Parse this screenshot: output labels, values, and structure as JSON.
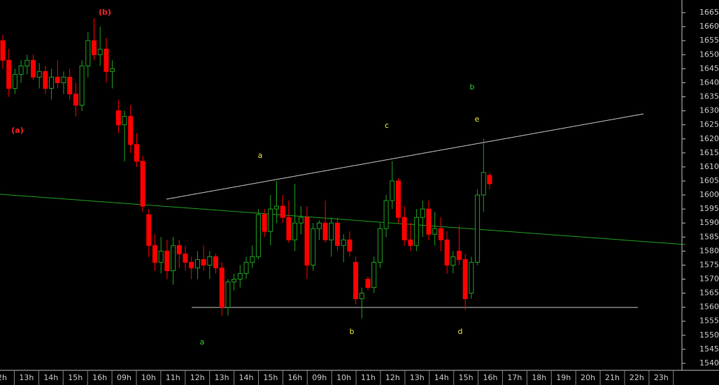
{
  "chart_data": {
    "type": "candlestick",
    "open": [
      1655,
      1648,
      1638,
      1643,
      1646,
      1648,
      1642,
      1644,
      1638,
      1642,
      1640,
      1642,
      1636,
      1632,
      1646,
      1655,
      1650,
      1652,
      1644,
      1630,
      1625,
      1628,
      1618,
      1612,
      1593,
      1582,
      1576,
      1580,
      1573,
      1582,
      1579,
      1576,
      1574,
      1577,
      1575,
      1578,
      1574,
      1560,
      1569,
      1570,
      1572,
      1576,
      1578,
      1593,
      1587,
      1595,
      1596,
      1592,
      1584,
      1590,
      1592,
      1575,
      1588,
      1590,
      1584,
      1590,
      1582,
      1584,
      1576,
      1563,
      1570,
      1567,
      1576,
      1588,
      1598,
      1605,
      1592,
      1584,
      1582,
      1592,
      1595,
      1586,
      1588,
      1584,
      1575,
      1580,
      1577,
      1565,
      1576,
      1600,
      1607
    ],
    "high": [
      1657,
      1652,
      1645,
      1648,
      1650,
      1650,
      1647,
      1646,
      1645,
      1648,
      1644,
      1645,
      1640,
      1648,
      1658,
      1663,
      1660,
      1656,
      1648,
      1634,
      1630,
      1632,
      1622,
      1614,
      1595,
      1586,
      1585,
      1584,
      1585,
      1584,
      1582,
      1578,
      1580,
      1582,
      1580,
      1579,
      1576,
      1570,
      1572,
      1575,
      1578,
      1582,
      1595,
      1595,
      1600,
      1605,
      1600,
      1598,
      1604,
      1596,
      1596,
      1590,
      1591,
      1598,
      1592,
      1592,
      1586,
      1587,
      1578,
      1567,
      1571,
      1578,
      1590,
      1600,
      1612,
      1606,
      1596,
      1590,
      1595,
      1598,
      1598,
      1594,
      1592,
      1587,
      1580,
      1589,
      1579,
      1578,
      1602,
      1620,
      1608
    ],
    "low": [
      1645,
      1635,
      1636,
      1640,
      1643,
      1641,
      1638,
      1636,
      1634,
      1638,
      1636,
      1634,
      1628,
      1630,
      1642,
      1648,
      1646,
      1640,
      1638,
      1622,
      1612,
      1615,
      1610,
      1594,
      1578,
      1573,
      1572,
      1570,
      1568,
      1574,
      1573,
      1570,
      1570,
      1573,
      1570,
      1572,
      1557,
      1557,
      1566,
      1567,
      1570,
      1574,
      1577,
      1585,
      1582,
      1590,
      1590,
      1583,
      1580,
      1586,
      1570,
      1573,
      1584,
      1583,
      1578,
      1580,
      1576,
      1578,
      1561,
      1556,
      1566,
      1565,
      1574,
      1585,
      1595,
      1590,
      1582,
      1580,
      1580,
      1585,
      1584,
      1582,
      1580,
      1572,
      1572,
      1575,
      1559,
      1563,
      1575,
      1594,
      1602
    ],
    "close": [
      1648,
      1638,
      1643,
      1646,
      1648,
      1642,
      1644,
      1638,
      1642,
      1640,
      1642,
      1636,
      1632,
      1646,
      1655,
      1650,
      1652,
      1644,
      1645,
      1625,
      1628,
      1618,
      1612,
      1596,
      1582,
      1576,
      1580,
      1573,
      1582,
      1579,
      1576,
      1574,
      1577,
      1575,
      1578,
      1574,
      1560,
      1569,
      1570,
      1572,
      1576,
      1578,
      1593,
      1587,
      1595,
      1596,
      1592,
      1584,
      1590,
      1592,
      1575,
      1588,
      1590,
      1584,
      1590,
      1582,
      1584,
      1580,
      1563,
      1565,
      1567,
      1576,
      1588,
      1598,
      1605,
      1592,
      1584,
      1582,
      1592,
      1595,
      1586,
      1588,
      1584,
      1575,
      1578,
      1577,
      1563,
      1576,
      1600,
      1608,
      1604
    ],
    "up_color": "#1f9f1f",
    "down_color": "#ff0000",
    "x_labels": [
      "2h",
      "13h",
      "14h",
      "15h",
      "16h",
      "09h",
      "10h",
      "11h",
      "12h",
      "13h",
      "14h",
      "15h",
      "16h",
      "09h",
      "10h",
      "11h",
      "12h",
      "13h",
      "14h",
      "15h",
      "16h",
      "17h",
      "18h",
      "19h",
      "20h",
      "21h",
      "22h",
      "23h"
    ],
    "ylim": [
      1537.5,
      1669.5
    ],
    "yticks": [
      1540,
      1545,
      1550,
      1555,
      1560,
      1565,
      1570,
      1575,
      1580,
      1585,
      1590,
      1595,
      1600,
      1605,
      1610,
      1615,
      1620,
      1625,
      1630,
      1635,
      1640,
      1645,
      1650,
      1655,
      1660,
      1665
    ],
    "annotations": [
      {
        "text": "(b)",
        "color": "#ff2020"
      },
      {
        "text": "(a)",
        "color": "#ff2020"
      },
      {
        "text": "b",
        "color": "#2fcf2f"
      },
      {
        "text": "e",
        "color": "#e8e840"
      },
      {
        "text": "c",
        "color": "#e8e840"
      },
      {
        "text": "a",
        "color": "#e8e840"
      },
      {
        "text": "a",
        "color": "#2fcf2f"
      },
      {
        "text": "b",
        "color": "#e8e840"
      },
      {
        "text": "d",
        "color": "#e8e840"
      }
    ]
  }
}
